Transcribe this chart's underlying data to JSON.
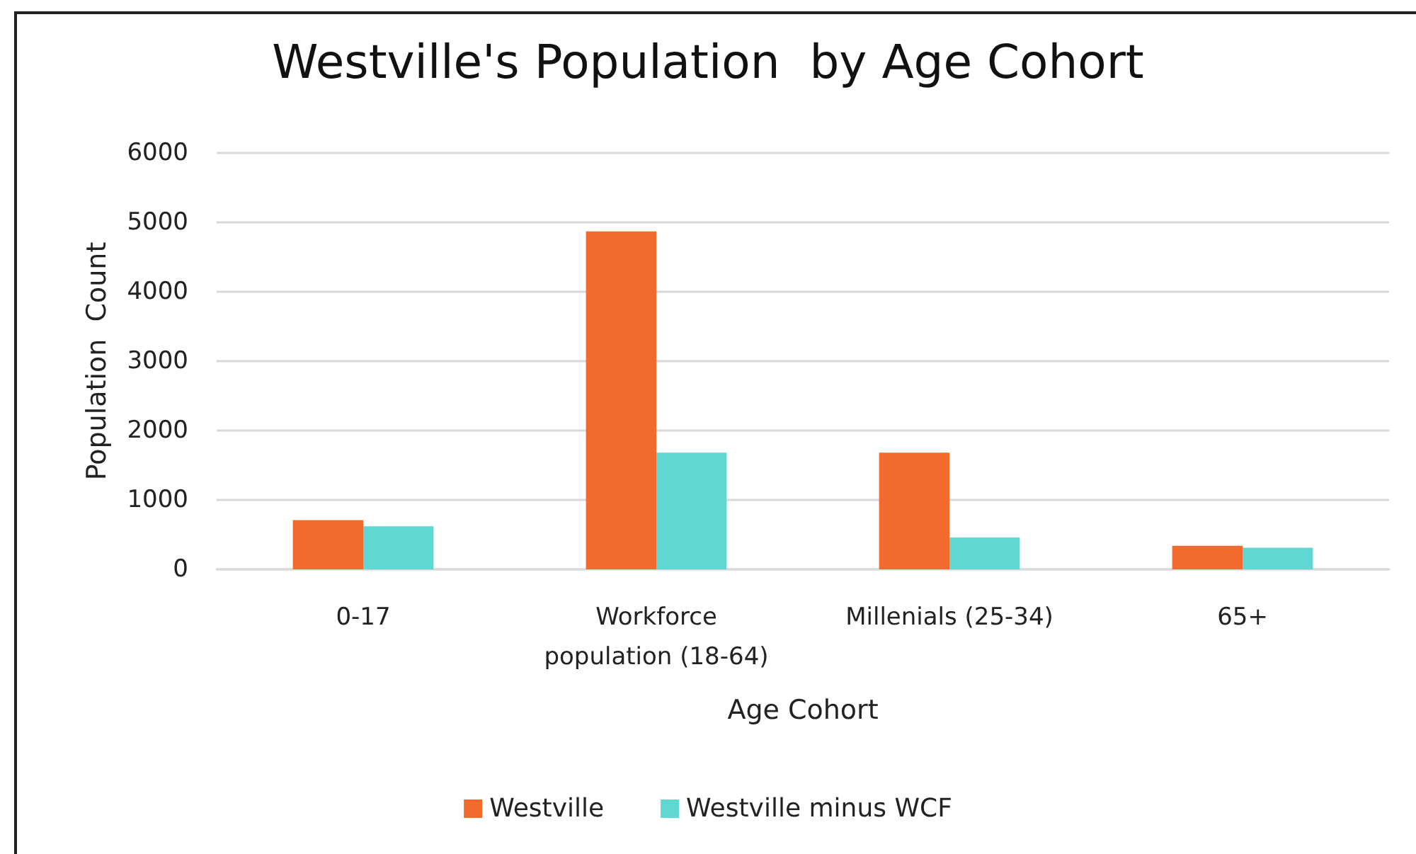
{
  "chart_data": {
    "type": "bar",
    "title": "Westville's Population  by Age Cohort",
    "xlabel": "Age Cohort",
    "ylabel": "Population  Count",
    "categories": [
      "0-17",
      "Workforce\npopulation (18-64)",
      "Millenials (25-34)",
      "65+"
    ],
    "series": [
      {
        "name": "Westville",
        "color": "#f26a2e",
        "values": [
          710,
          4870,
          1680,
          340
        ]
      },
      {
        "name": "Westville minus WCF",
        "color": "#5fd7d2",
        "values": [
          620,
          1680,
          460,
          310
        ]
      }
    ],
    "ylim": [
      0,
      6000
    ],
    "yticks": [
      0,
      1000,
      2000,
      3000,
      4000,
      5000,
      6000
    ],
    "grid": "y",
    "legend": "bottom"
  }
}
